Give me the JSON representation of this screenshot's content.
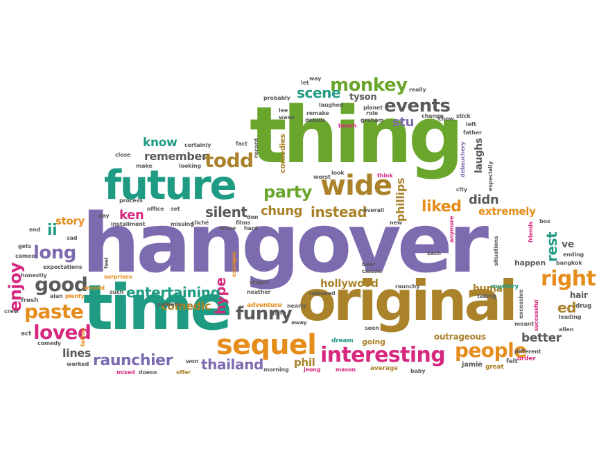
{
  "palette": {
    "purple": "#7d6bb0",
    "green": "#6aa62c",
    "teal": "#1f9b83",
    "gold": "#a9822a",
    "orange": "#e58c1a",
    "magenta": "#d6287f",
    "gray": "#5a5a5a",
    "olive": "#8b7a2e"
  },
  "words": [
    "hangover",
    "thing",
    "original",
    "time",
    "future",
    "wide",
    "sequel",
    "interesting",
    "people",
    "monkey",
    "events",
    "todd",
    "party",
    "funny",
    "paste",
    "loved",
    "good",
    "long",
    "enjoy",
    "raunchier",
    "thailand",
    "right",
    "liked",
    "scene",
    "instead",
    "silent",
    "chung",
    "hype",
    "entertaining",
    "comedic",
    "remember",
    "know",
    "ken",
    "story",
    "ii",
    "lines",
    "phil",
    "better",
    "rest",
    "extremely",
    "didn",
    "laughs",
    "phillips",
    "stu",
    "tyson",
    "hollywood",
    "human",
    "ed",
    "ve",
    "hair",
    "outrageous",
    "going",
    "jamie",
    "comedies",
    "happen",
    "mystery",
    "adventure",
    "dream",
    "tattoo",
    "drug",
    "allen",
    "crew",
    "fresh",
    "act",
    "worked",
    "mixed",
    "doesn",
    "offer",
    "won",
    "morning",
    "jeong",
    "mason",
    "average",
    "baby",
    "great",
    "felt",
    "order",
    "meant",
    "different",
    "taking",
    "successful",
    "excessive",
    "leading",
    "bangkok",
    "ending",
    "box",
    "friends",
    "situations",
    "zach",
    "beer",
    "classic",
    "seen",
    "released",
    "nearly",
    "away",
    "quite",
    "stupid",
    "neather",
    "example",
    "raunchy",
    "cameo",
    "honestly",
    "comedy",
    "alan",
    "plenty",
    "second",
    "surprises",
    "such",
    "pathetic",
    "feel",
    "expectations",
    "gets",
    "sad",
    "end",
    "installment",
    "day",
    "process",
    "office",
    "set",
    "cliché",
    "erase",
    "hard",
    "films",
    "overall",
    "new",
    "anymore",
    "city",
    "especially",
    "think",
    "look",
    "worst",
    "debauchery",
    "father",
    "left",
    "chow",
    "stick",
    "change",
    "beach",
    "graham",
    "planet",
    "role",
    "laughed",
    "remake",
    "details",
    "wasn",
    "lee",
    "probably",
    "let",
    "way",
    "really",
    "fact",
    "record",
    "don",
    "certainly",
    "close",
    "make",
    "looking",
    "missing"
  ]
}
